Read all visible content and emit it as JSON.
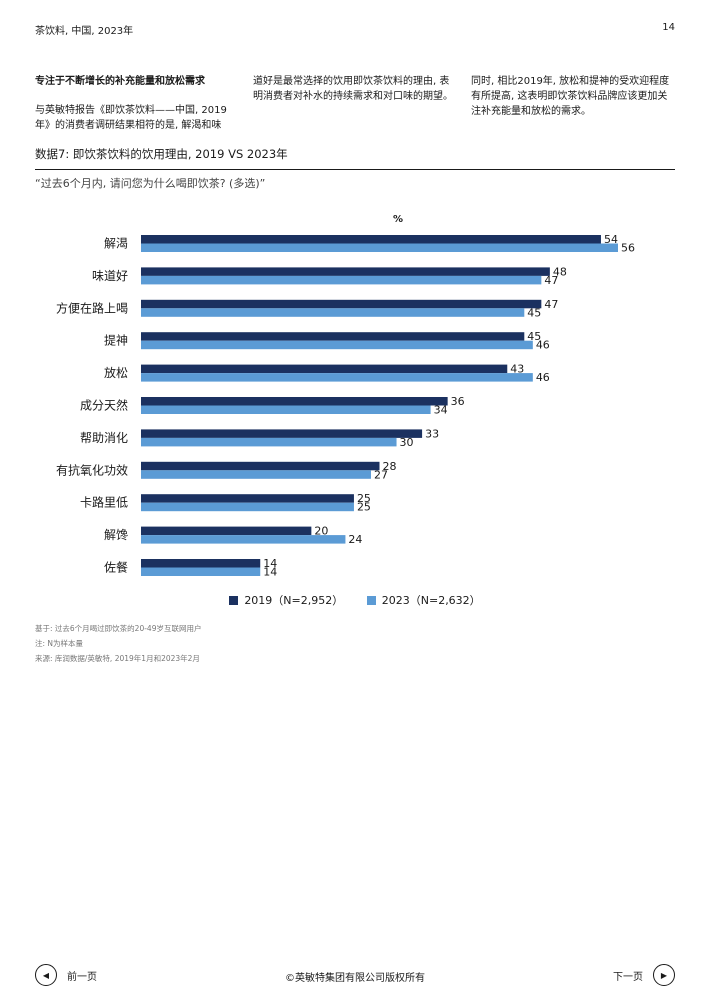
{
  "header": {
    "left": "茶饮料, 中国, 2023年",
    "page_number": "14"
  },
  "columns": {
    "col1_heading": "专注于不断增长的补充能量和放松需求",
    "col1_body": "与英敏特报告《即饮茶饮料——中国, 2019年》的消费者调研结果相符的是, 解渴和味",
    "col2_body": "道好是最常选择的饮用即饮茶饮料的理由, 表明消费者对补水的持续需求和对口味的期望。",
    "col3_body": "同时, 相比2019年, 放松和提神的受欢迎程度有所提高, 这表明即饮茶饮料品牌应该更加关注补充能量和放松的需求。"
  },
  "figure": {
    "title": "数据7: 即饮茶饮料的饮用理由, 2019 VS 2023年",
    "question": "“过去6个月内, 请问您为什么喝即饮茶? (多选)”"
  },
  "chart_data": {
    "type": "bar",
    "orientation": "horizontal",
    "unit_label": "%",
    "categories": [
      "解渴",
      "味道好",
      "方便在路上喝",
      "提神",
      "放松",
      "成分天然",
      "帮助消化",
      "有抗氧化功效",
      "卡路里低",
      "解馋",
      "佐餐"
    ],
    "series": [
      {
        "name": "2019（N=2,952）",
        "color": "#1b3160",
        "values": [
          54,
          48,
          47,
          45,
          43,
          36,
          33,
          28,
          25,
          20,
          14
        ]
      },
      {
        "name": "2023（N=2,632）",
        "color": "#5b9bd5",
        "values": [
          56,
          47,
          45,
          46,
          46,
          34,
          30,
          27,
          25,
          24,
          14
        ]
      }
    ],
    "xlim": [
      0,
      56
    ],
    "grid": false,
    "legend_position": "bottom-center"
  },
  "notes": [
    "基于: 过去6个月喝过即饮茶的20-49岁互联网用户",
    "注: N为样本量",
    "来源: 库润数据/英敏特, 2019年1月和2023年2月"
  ],
  "footer": {
    "prev_label": "前一页",
    "next_label": "下一页",
    "copyright": "©英敏特集团有限公司版权所有"
  },
  "icons": {
    "prev": "left-triangle-icon",
    "next": "right-triangle-icon"
  }
}
